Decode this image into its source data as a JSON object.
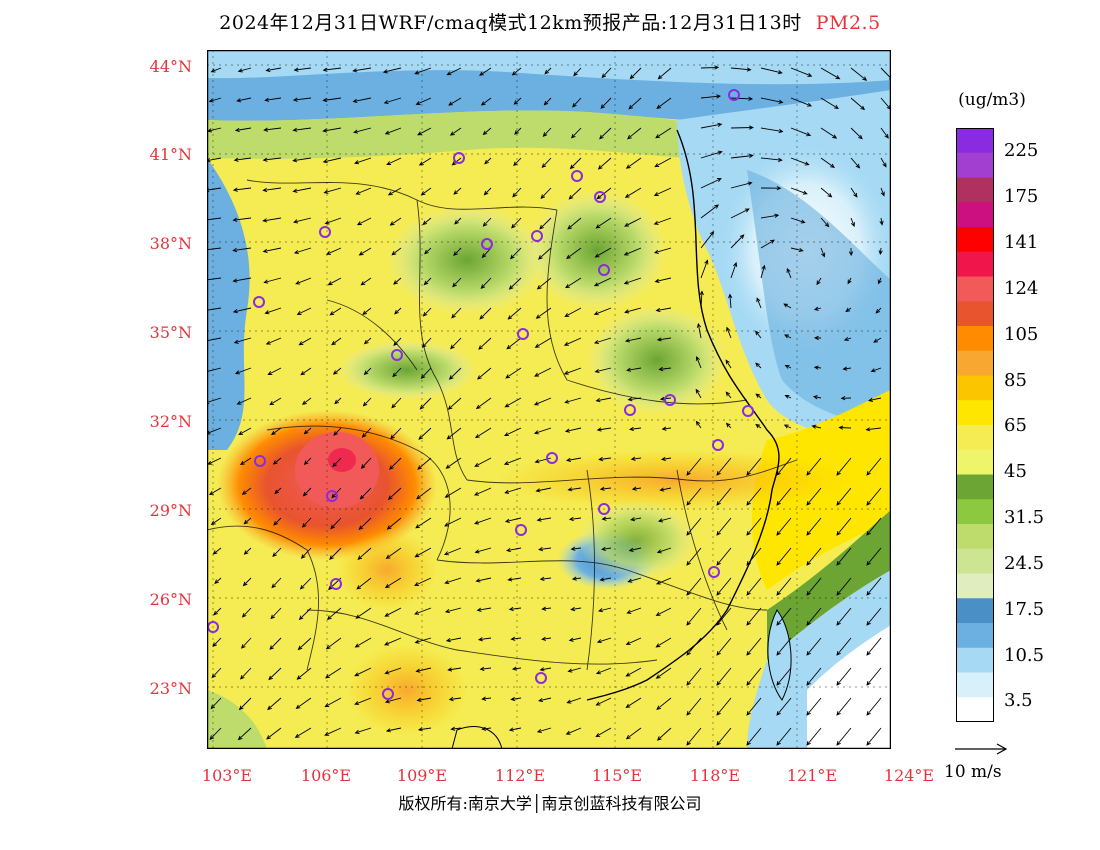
{
  "title": {
    "main": "2024年12月31日WRF/cmaq模式12km预报产品:12月31日13时",
    "pollutant": "PM2.5"
  },
  "axes": {
    "lat_labels": [
      "44°N",
      "41°N",
      "38°N",
      "35°N",
      "32°N",
      "29°N",
      "26°N",
      "23°N"
    ],
    "lon_labels": [
      "103°E",
      "106°E",
      "109°E",
      "112°E",
      "115°E",
      "118°E",
      "121°E",
      "124°E"
    ],
    "lat_range": [
      21,
      44.5
    ],
    "lon_range": [
      103,
      124
    ]
  },
  "colorbar": {
    "unit": "(ug/m3)",
    "labels": [
      "225",
      "175",
      "141",
      "124",
      "105",
      "85",
      "65",
      "45",
      "31.5",
      "24.5",
      "17.5",
      "10.5",
      "3.5"
    ],
    "colors": [
      "#8a2be2",
      "#a33fd0",
      "#b03060",
      "#cc1080",
      "#ff0000",
      "#f0154a",
      "#f25a5a",
      "#e8542e",
      "#ff8c00",
      "#f8a830",
      "#fbc500",
      "#ffe600",
      "#f5eb52",
      "#eef56a",
      "#6ca534",
      "#8cc840",
      "#bddc6c",
      "#cde592",
      "#e0edbe",
      "#4a90c6",
      "#6bb0e0",
      "#a5d9f4",
      "#d8f0fa",
      "#ffffff"
    ]
  },
  "wind": {
    "reference_label": "10 m/s"
  },
  "map": {
    "land_color": "#f5eb52",
    "sea_low_color": "#a5d9f4",
    "city_marker_color": "#8a2be2"
  },
  "copyright": "版权所有:南京大学│南京创蓝科技有限公司"
}
